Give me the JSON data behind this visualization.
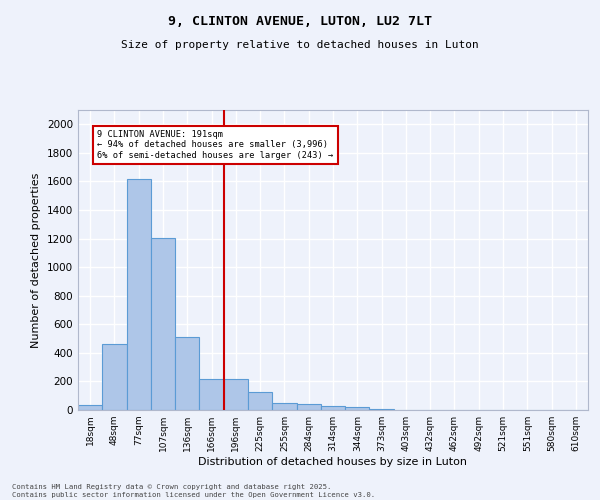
{
  "title_line1": "9, CLINTON AVENUE, LUTON, LU2 7LT",
  "title_line2": "Size of property relative to detached houses in Luton",
  "xlabel": "Distribution of detached houses by size in Luton",
  "ylabel": "Number of detached properties",
  "categories": [
    "18sqm",
    "48sqm",
    "77sqm",
    "107sqm",
    "136sqm",
    "166sqm",
    "196sqm",
    "225sqm",
    "255sqm",
    "284sqm",
    "314sqm",
    "344sqm",
    "373sqm",
    "403sqm",
    "432sqm",
    "462sqm",
    "492sqm",
    "521sqm",
    "551sqm",
    "580sqm",
    "610sqm"
  ],
  "values": [
    35,
    460,
    1620,
    1205,
    510,
    220,
    220,
    125,
    50,
    40,
    25,
    20,
    5,
    0,
    0,
    0,
    0,
    0,
    0,
    0,
    0
  ],
  "bar_color": "#aec6e8",
  "bar_edge_color": "#5b9bd5",
  "vline_color": "#cc0000",
  "vline_index": 6,
  "annotation_text": "9 CLINTON AVENUE: 191sqm\n← 94% of detached houses are smaller (3,996)\n6% of semi-detached houses are larger (243) →",
  "annotation_box_color": "#cc0000",
  "ylim": [
    0,
    2100
  ],
  "yticks": [
    0,
    200,
    400,
    600,
    800,
    1000,
    1200,
    1400,
    1600,
    1800,
    2000
  ],
  "background_color": "#eef2fb",
  "grid_color": "#ffffff",
  "footer_line1": "Contains HM Land Registry data © Crown copyright and database right 2025.",
  "footer_line2": "Contains public sector information licensed under the Open Government Licence v3.0."
}
